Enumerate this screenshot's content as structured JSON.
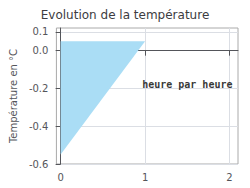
{
  "chart_data": {
    "type": "area",
    "title": "Evolution de la température",
    "y_label": "Température en °C",
    "x": [
      0,
      0,
      1
    ],
    "values": [
      0.05,
      -0.55,
      0.05
    ],
    "color": "#aaddf5",
    "xlim": [
      -0.05,
      2.1
    ],
    "ylim": [
      -0.6,
      0.12
    ],
    "xticks": [
      0,
      1,
      2
    ],
    "yticks": [
      -0.6,
      -0.4,
      -0.2,
      {
        "value": 0,
        "label": "0.0"
      },
      0.1
    ],
    "grid": true,
    "annotations": [
      {
        "text": "heure par heure",
        "x": 1.5,
        "y": -0.18
      }
    ]
  }
}
